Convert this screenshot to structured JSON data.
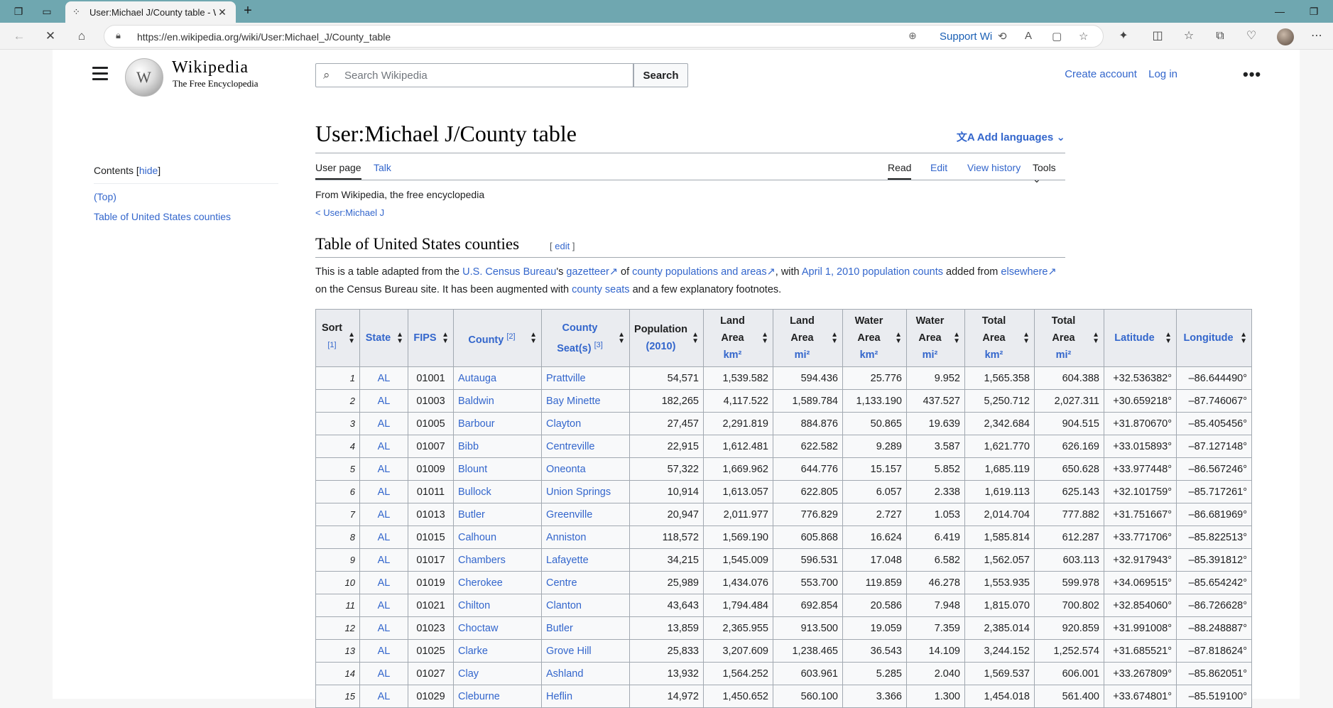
{
  "browser": {
    "tab_title": "User:Michael J/County table - Wi",
    "url": "https://en.wikipedia.org/wiki/User:Michael_J/County_table",
    "support_label": "Support Wi"
  },
  "header": {
    "wordmark": "Wikipedia",
    "tagline": "The Free Encyclopedia",
    "search_placeholder": "Search Wikipedia",
    "search_button": "Search",
    "create_account": "Create account",
    "log_in": "Log in"
  },
  "toc": {
    "title": "Contents",
    "hide": "hide",
    "items": [
      "(Top)",
      "Table of United States counties"
    ]
  },
  "article": {
    "title": "User:Michael J/County table",
    "add_languages": "Add languages",
    "tabs": {
      "user_page": "User page",
      "talk": "Talk",
      "read": "Read",
      "edit": "Edit",
      "view_history": "View history",
      "tools": "Tools"
    },
    "from": "From Wikipedia, the free encyclopedia",
    "back_link": "< User:Michael J",
    "section_title": "Table of United States counties",
    "section_edit": "edit",
    "intro": {
      "p1": "This is a table adapted from the ",
      "l1": "U.S. Census Bureau",
      "p2": "'s ",
      "l2": "gazetteer",
      "p3": " of ",
      "l3": "county populations and areas",
      "p4": ", with ",
      "l4": "April 1, 2010 population counts",
      "p5": " added from ",
      "l5": "elsewhere",
      "p6": " on the Census Bureau site. It has been augmented with ",
      "l6": "county seats",
      "p7": " and a few explanatory footnotes."
    }
  },
  "table": {
    "headers": {
      "sort": "Sort",
      "sort_note": "[1]",
      "state": "State",
      "fips": "FIPS",
      "county": "County",
      "county_note": "[2]",
      "seat1": "County",
      "seat2": "Seat(s)",
      "seat_note": "[3]",
      "pop1": "Population",
      "pop2": "(2010)",
      "land1": "Land",
      "land2": "Area",
      "km2": "km²",
      "mi2": "mi²",
      "water1": "Water",
      "total1": "Total",
      "latitude": "Latitude",
      "longitude": "Longitude"
    },
    "rows": [
      [
        "1",
        "AL",
        "01001",
        "Autauga",
        "Prattville",
        "54,571",
        "1,539.582",
        "594.436",
        "25.776",
        "9.952",
        "1,565.358",
        "604.388",
        "+32.536382°",
        "–86.644490°"
      ],
      [
        "2",
        "AL",
        "01003",
        "Baldwin",
        "Bay Minette",
        "182,265",
        "4,117.522",
        "1,589.784",
        "1,133.190",
        "437.527",
        "5,250.712",
        "2,027.311",
        "+30.659218°",
        "–87.746067°"
      ],
      [
        "3",
        "AL",
        "01005",
        "Barbour",
        "Clayton",
        "27,457",
        "2,291.819",
        "884.876",
        "50.865",
        "19.639",
        "2,342.684",
        "904.515",
        "+31.870670°",
        "–85.405456°"
      ],
      [
        "4",
        "AL",
        "01007",
        "Bibb",
        "Centreville",
        "22,915",
        "1,612.481",
        "622.582",
        "9.289",
        "3.587",
        "1,621.770",
        "626.169",
        "+33.015893°",
        "–87.127148°"
      ],
      [
        "5",
        "AL",
        "01009",
        "Blount",
        "Oneonta",
        "57,322",
        "1,669.962",
        "644.776",
        "15.157",
        "5.852",
        "1,685.119",
        "650.628",
        "+33.977448°",
        "–86.567246°"
      ],
      [
        "6",
        "AL",
        "01011",
        "Bullock",
        "Union Springs",
        "10,914",
        "1,613.057",
        "622.805",
        "6.057",
        "2.338",
        "1,619.113",
        "625.143",
        "+32.101759°",
        "–85.717261°"
      ],
      [
        "7",
        "AL",
        "01013",
        "Butler",
        "Greenville",
        "20,947",
        "2,011.977",
        "776.829",
        "2.727",
        "1.053",
        "2,014.704",
        "777.882",
        "+31.751667°",
        "–86.681969°"
      ],
      [
        "8",
        "AL",
        "01015",
        "Calhoun",
        "Anniston",
        "118,572",
        "1,569.190",
        "605.868",
        "16.624",
        "6.419",
        "1,585.814",
        "612.287",
        "+33.771706°",
        "–85.822513°"
      ],
      [
        "9",
        "AL",
        "01017",
        "Chambers",
        "Lafayette",
        "34,215",
        "1,545.009",
        "596.531",
        "17.048",
        "6.582",
        "1,562.057",
        "603.113",
        "+32.917943°",
        "–85.391812°"
      ],
      [
        "10",
        "AL",
        "01019",
        "Cherokee",
        "Centre",
        "25,989",
        "1,434.076",
        "553.700",
        "119.859",
        "46.278",
        "1,553.935",
        "599.978",
        "+34.069515°",
        "–85.654242°"
      ],
      [
        "11",
        "AL",
        "01021",
        "Chilton",
        "Clanton",
        "43,643",
        "1,794.484",
        "692.854",
        "20.586",
        "7.948",
        "1,815.070",
        "700.802",
        "+32.854060°",
        "–86.726628°"
      ],
      [
        "12",
        "AL",
        "01023",
        "Choctaw",
        "Butler",
        "13,859",
        "2,365.955",
        "913.500",
        "19.059",
        "7.359",
        "2,385.014",
        "920.859",
        "+31.991008°",
        "–88.248887°"
      ],
      [
        "13",
        "AL",
        "01025",
        "Clarke",
        "Grove Hill",
        "25,833",
        "3,207.609",
        "1,238.465",
        "36.543",
        "14.109",
        "3,244.152",
        "1,252.574",
        "+31.685521°",
        "–87.818624°"
      ],
      [
        "14",
        "AL",
        "01027",
        "Clay",
        "Ashland",
        "13,932",
        "1,564.252",
        "603.961",
        "5.285",
        "2.040",
        "1,569.537",
        "606.001",
        "+33.267809°",
        "–85.862051°"
      ],
      [
        "15",
        "AL",
        "01029",
        "Cleburne",
        "Heflin",
        "14,972",
        "1,450.652",
        "560.100",
        "3.366",
        "1.300",
        "1,454.018",
        "561.400",
        "+33.674801°",
        "–85.519100°"
      ]
    ]
  }
}
